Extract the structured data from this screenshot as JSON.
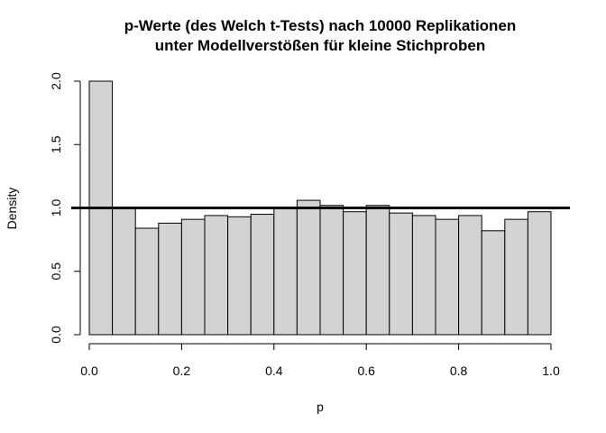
{
  "chart_data": {
    "type": "bar",
    "title_line1": "p-Werte (des Welch t-Tests) nach 10000 Replikationen",
    "title_line2": "unter Modellverstößen für kleine Stichproben",
    "xlabel": "p",
    "ylabel": "Density",
    "xlim": [
      0,
      1
    ],
    "ylim": [
      0,
      2
    ],
    "x_ticks": [
      "0.0",
      "0.2",
      "0.4",
      "0.6",
      "0.8",
      "1.0"
    ],
    "y_ticks": [
      "0.0",
      "0.5",
      "1.0",
      "1.5",
      "2.0"
    ],
    "bin_width": 0.05,
    "bins": [
      {
        "start": 0.0,
        "end": 0.05,
        "density": 2.0
      },
      {
        "start": 0.05,
        "end": 0.1,
        "density": 1.0
      },
      {
        "start": 0.1,
        "end": 0.15,
        "density": 0.84
      },
      {
        "start": 0.15,
        "end": 0.2,
        "density": 0.88
      },
      {
        "start": 0.2,
        "end": 0.25,
        "density": 0.91
      },
      {
        "start": 0.25,
        "end": 0.3,
        "density": 0.94
      },
      {
        "start": 0.3,
        "end": 0.35,
        "density": 0.93
      },
      {
        "start": 0.35,
        "end": 0.4,
        "density": 0.95
      },
      {
        "start": 0.4,
        "end": 0.45,
        "density": 1.0
      },
      {
        "start": 0.45,
        "end": 0.5,
        "density": 1.06
      },
      {
        "start": 0.5,
        "end": 0.55,
        "density": 1.02
      },
      {
        "start": 0.55,
        "end": 0.6,
        "density": 0.97
      },
      {
        "start": 0.6,
        "end": 0.65,
        "density": 1.02
      },
      {
        "start": 0.65,
        "end": 0.7,
        "density": 0.96
      },
      {
        "start": 0.7,
        "end": 0.75,
        "density": 0.94
      },
      {
        "start": 0.75,
        "end": 0.8,
        "density": 0.91
      },
      {
        "start": 0.8,
        "end": 0.85,
        "density": 0.94
      },
      {
        "start": 0.85,
        "end": 0.9,
        "density": 0.82
      },
      {
        "start": 0.9,
        "end": 0.95,
        "density": 0.91
      },
      {
        "start": 0.95,
        "end": 1.0,
        "density": 0.97
      }
    ],
    "reference_line_density": 1.0,
    "bar_fill": "#d3d3d3",
    "bar_stroke": "#000000",
    "grid": false
  }
}
